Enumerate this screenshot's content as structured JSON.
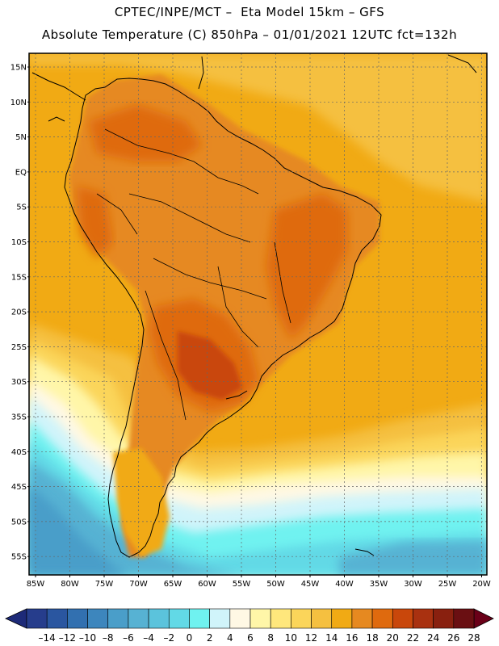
{
  "title": {
    "line1": "CPTEC/INPE/MCT –  Eta Model 15km – GFS",
    "line2": "Absolute Temperature (C) 850hPa – 01/01/2021 12UTC fct=132h"
  },
  "axes": {
    "lat_labels": [
      "15N",
      "10N",
      "5N",
      "EQ",
      "5S",
      "10S",
      "15S",
      "20S",
      "25S",
      "30S",
      "35S",
      "40S",
      "45S",
      "50S",
      "55S"
    ],
    "lon_labels": [
      "85W",
      "80W",
      "75W",
      "70W",
      "65W",
      "60W",
      "55W",
      "50W",
      "45W",
      "40W",
      "35W",
      "30W",
      "25W",
      "20W"
    ]
  },
  "colorbar": {
    "labels": [
      "-14",
      "-12",
      "-10",
      "-8",
      "-6",
      "-4",
      "-2",
      "0",
      "2",
      "4",
      "6",
      "8",
      "10",
      "12",
      "14",
      "16",
      "18",
      "20",
      "22",
      "24",
      "26",
      "28"
    ],
    "colors": [
      "#263d8c",
      "#2a56a0",
      "#3270b0",
      "#3d86bd",
      "#4a9ec9",
      "#57b2d3",
      "#5bc3dc",
      "#62d9e6",
      "#6ff2f0",
      "#d0f4fa",
      "#fff8e4",
      "#fff6a8",
      "#ffe77c",
      "#fbd55a",
      "#f5c040",
      "#f1aa14",
      "#e68920",
      "#df6a0e",
      "#c9470b",
      "#a93110",
      "#89200f",
      "#6a0f12"
    ],
    "under_color": "#1d2a78",
    "over_color": "#6a0018"
  },
  "colors": {
    "ocean_warm": "#f1aa14",
    "land": "#e68920",
    "hot": "#c9470b",
    "frame": "#000000"
  }
}
